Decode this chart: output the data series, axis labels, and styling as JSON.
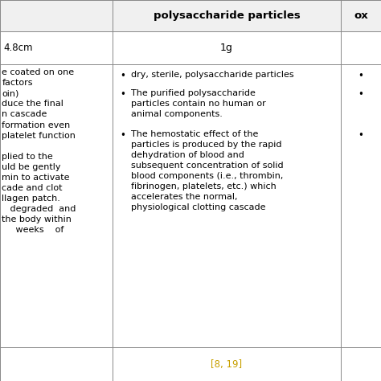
{
  "header_col2": "polysaccharide particles",
  "header_col3": "ox",
  "row1_col1": "4.8cm",
  "row1_col2": "1g",
  "row2_col1_lines": [
    "e coated on one",
    "factors",
    "oin)",
    "duce the final",
    "n cascade",
    "formation even",
    "platelet function",
    "",
    "plied to the",
    "uld be gently",
    "min to activate",
    "cade and clot",
    "llagen patch.",
    "   degraded  and",
    "the body within",
    "     weeks    of"
  ],
  "row2_col2_bullet1": "dry, sterile, polysaccharide particles",
  "row2_col2_bullet2": "The purified polysaccharide\nparticles contain no human or\nanimal components.",
  "row2_col2_bullet3": "The hemostatic effect of the\nparticles is produced by the rapid\ndehydration of blood and\nsubsequent concentration of solid\nblood components (i.e., thrombin,\nfibrinogen, platelets, etc.) which\naccelerates the normal,\nphysiological clotting cascade",
  "row3_col2": "[8, 19]",
  "ref_color": "#C8A000",
  "bg_color": "#ffffff",
  "text_color": "#000000",
  "line_color": "#888888",
  "header_bg": "#f0f0f0",
  "c0": 0.0,
  "c1": 0.295,
  "c2": 0.895,
  "c3": 1.0,
  "r0": 1.0,
  "r1": 0.918,
  "r2": 0.832,
  "r3": 0.088,
  "r4": 0.0,
  "fontsize": 8.5,
  "header_fontsize": 9.5
}
